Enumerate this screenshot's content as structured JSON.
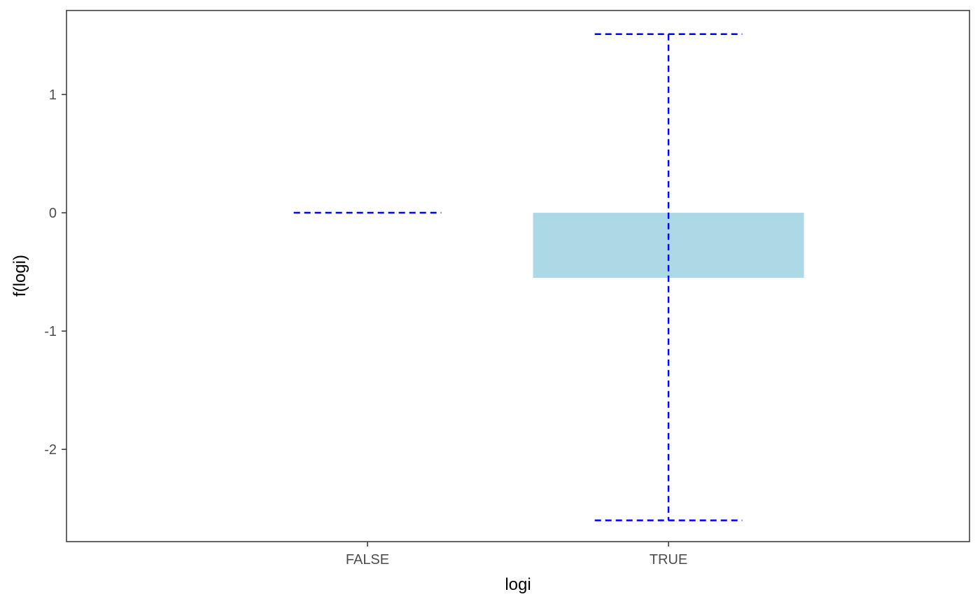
{
  "chart_data": {
    "type": "bar",
    "title": "",
    "xlabel": "logi",
    "ylabel": "f(logi)",
    "categories": [
      "FALSE",
      "TRUE"
    ],
    "values": [
      0,
      -0.55
    ],
    "error_bars": [
      {
        "category": "FALSE",
        "low": 0,
        "high": 0
      },
      {
        "category": "TRUE",
        "low": -2.6,
        "high": 1.51
      }
    ],
    "ylim": [
      -2.78,
      1.71
    ],
    "yticks": [
      1,
      0,
      -1,
      -2
    ],
    "ytick_labels": [
      "1",
      "0",
      "-1",
      "-2"
    ],
    "grid": false,
    "legend": "none",
    "colors": {
      "bar_fill": "#add8e6",
      "error_bar": "#0000ff",
      "panel_border": "#333333",
      "tick_text": "#4d4d4d"
    }
  }
}
